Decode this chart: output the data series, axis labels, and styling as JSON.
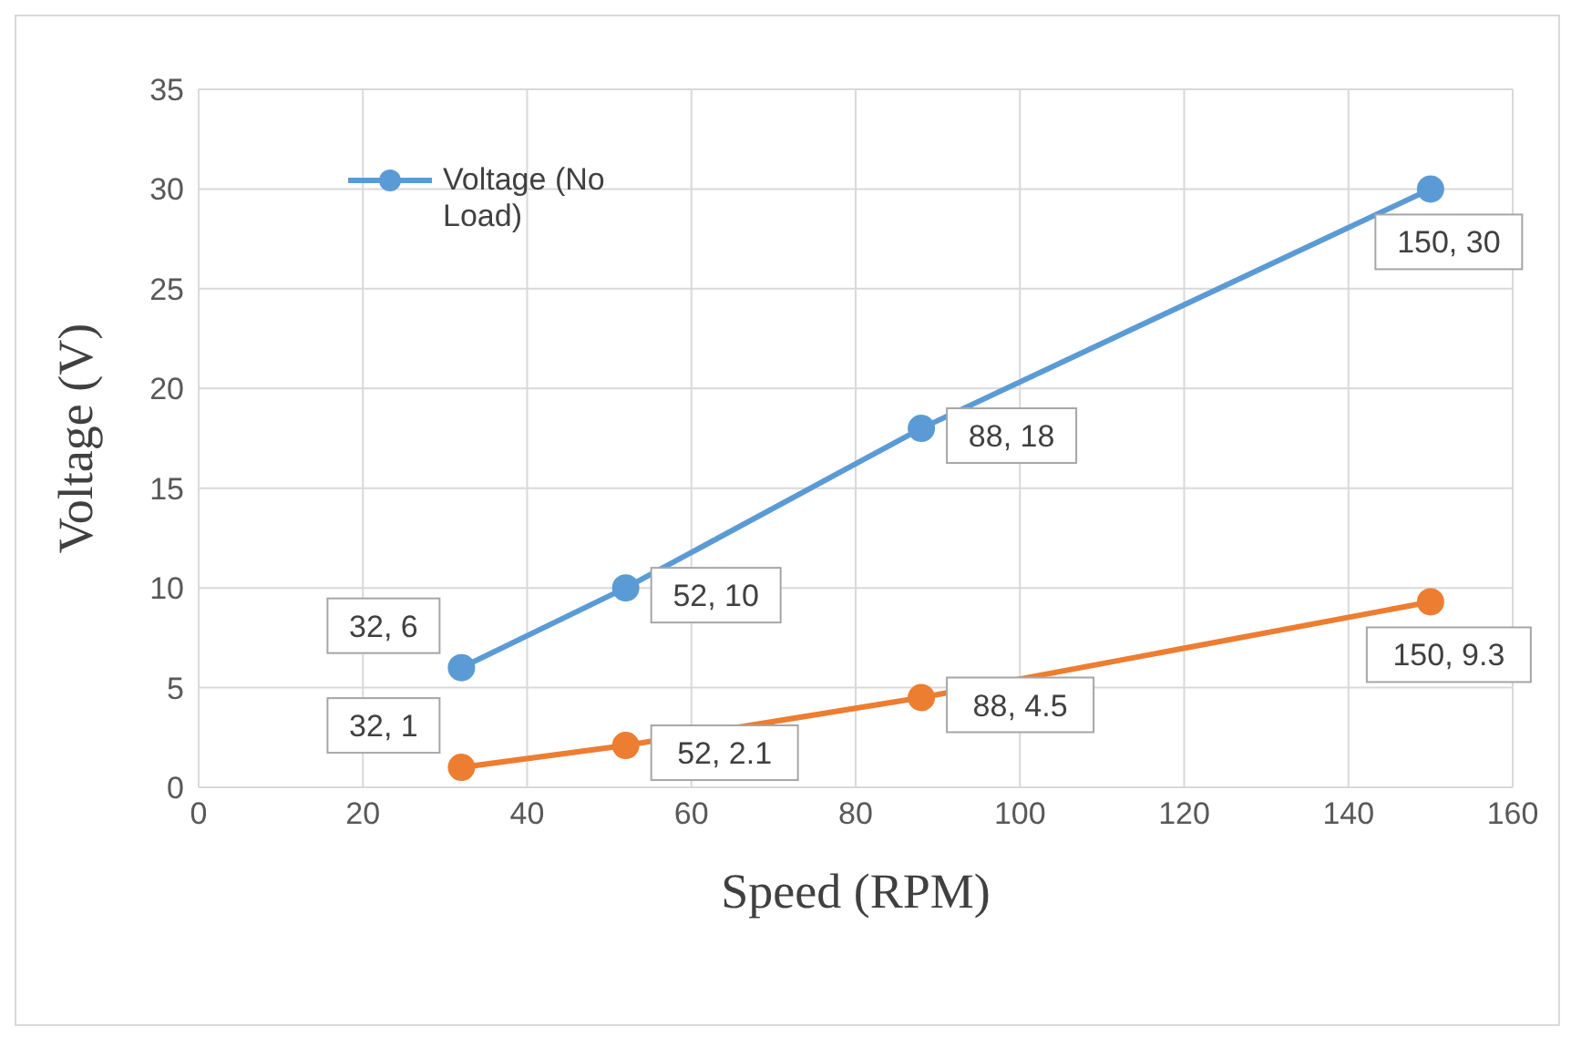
{
  "chart_data": {
    "type": "line",
    "xlabel": "Speed (RPM)",
    "ylabel": "Voltage (V)",
    "xlim": [
      0,
      160
    ],
    "xticks": [
      0,
      20,
      40,
      60,
      80,
      100,
      120,
      140,
      160
    ],
    "ylim": [
      0,
      35
    ],
    "yticks": [
      0,
      5,
      10,
      15,
      20,
      25,
      30,
      35
    ],
    "grid": true,
    "legend": "top left",
    "marker": "circle",
    "line_style": "solid",
    "series": [
      {
        "name": "Voltage (No Load)",
        "color": "#5b9bd5",
        "x": [
          32,
          52,
          88,
          150
        ],
        "values": [
          6,
          10,
          18,
          30
        ],
        "value_labels": [
          "32, 6",
          "52, 10",
          "88, 18",
          "150, 30"
        ]
      },
      {
        "color": "#ed7d31",
        "x": [
          32,
          52,
          88,
          150
        ],
        "values": [
          1,
          2.1,
          4.5,
          9.3
        ],
        "value_labels": [
          "32, 1",
          "52, 2.1",
          "88, 4.5",
          "150, 9.3"
        ]
      }
    ]
  }
}
